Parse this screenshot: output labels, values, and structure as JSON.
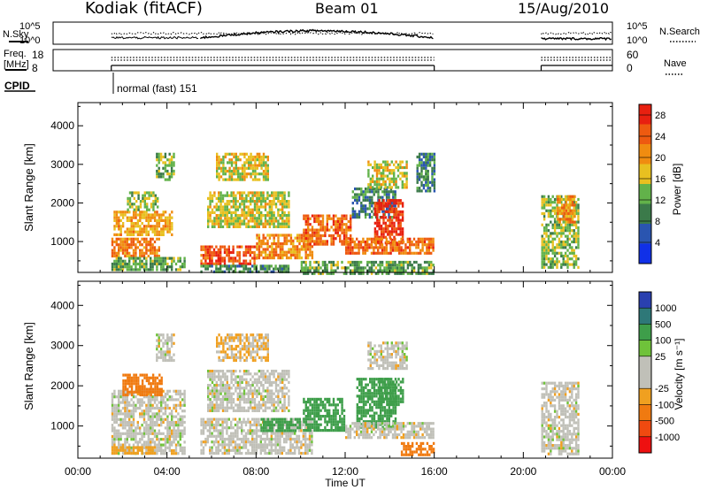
{
  "header": {
    "station": "Kodiak (fitACF)",
    "beam": "Beam 01",
    "date": "15/Aug/2010"
  },
  "top_panels": {
    "nsky_label": "N.Sky",
    "nsky_ticks": [
      "10^5",
      "10^0"
    ],
    "nsearch_label": "N.Search",
    "nsearch_ticks": [
      "10^5",
      "10^0"
    ],
    "freq_label_line1": "Freq.",
    "freq_label_line2": "[MHz]",
    "freq_ticks": [
      "18",
      "8"
    ],
    "nave_label": "Nave",
    "nave_ticks": [
      "60",
      "0"
    ],
    "cpid_label": "CPID",
    "cpid_mode": "normal (fast) 151"
  },
  "colors": {
    "power_scale": [
      "#1030e8",
      "#2a55b0",
      "#3b7a4a",
      "#62b24a",
      "#e8c020",
      "#f08c10",
      "#ee5a10",
      "#e82010"
    ],
    "velocity_scale": [
      "#ee1010",
      "#f04a10",
      "#f07a10",
      "#f0a020",
      "#c0c0b8",
      "#c0c0b8",
      "#6fc23a",
      "#3e9e4a",
      "#2e7878",
      "#2a40b0"
    ]
  },
  "chart_data": [
    {
      "type": "heatmap",
      "name": "power",
      "ylabel": "Slant Range [km]",
      "xlabel": "",
      "yticks": [
        "1000",
        "2000",
        "3000",
        "4000"
      ],
      "ylim": [
        200,
        4600
      ],
      "xlim": [
        0,
        24
      ],
      "x_tick_labels": [
        "00:00",
        "04:00",
        "08:00",
        "12:00",
        "16:00",
        "20:00",
        "00:00"
      ],
      "colorbar_label": "Power [dB]",
      "colorbar_ticks": [
        "4",
        "8",
        "12",
        "16",
        "20",
        "24",
        "28"
      ],
      "colorbar_range": [
        0,
        30
      ],
      "data_time_windows_hours": [
        [
          1.5,
          5.4
        ],
        [
          5.5,
          16.0
        ],
        [
          20.8,
          24.0
        ]
      ],
      "patches": [
        {
          "t0": 1.5,
          "t1": 3.6,
          "r0": 600,
          "r1": 1100,
          "value": 22
        },
        {
          "t0": 1.6,
          "t1": 4.2,
          "r0": 1200,
          "r1": 1800,
          "value": 19
        },
        {
          "t0": 2.2,
          "t1": 3.6,
          "r0": 1800,
          "r1": 2300,
          "value": 14
        },
        {
          "t0": 1.5,
          "t1": 4.8,
          "r0": 300,
          "r1": 600,
          "value": 12
        },
        {
          "t0": 3.5,
          "t1": 4.3,
          "r0": 2600,
          "r1": 3300,
          "value": 13
        },
        {
          "t0": 5.5,
          "t1": 8.0,
          "r0": 400,
          "r1": 900,
          "value": 25
        },
        {
          "t0": 8.0,
          "t1": 10.5,
          "r0": 600,
          "r1": 1200,
          "value": 21
        },
        {
          "t0": 5.8,
          "t1": 9.5,
          "r0": 1400,
          "r1": 2300,
          "value": 16
        },
        {
          "t0": 6.2,
          "t1": 8.5,
          "r0": 2600,
          "r1": 3300,
          "value": 17
        },
        {
          "t0": 5.5,
          "t1": 9.5,
          "r0": 200,
          "r1": 400,
          "value": 10
        },
        {
          "t0": 10.1,
          "t1": 12.2,
          "r0": 900,
          "r1": 1700,
          "value": 24
        },
        {
          "t0": 12.3,
          "t1": 14.3,
          "r0": 1600,
          "r1": 2400,
          "value": 9
        },
        {
          "t0": 13.3,
          "t1": 14.6,
          "r0": 1000,
          "r1": 2100,
          "value": 27
        },
        {
          "t0": 12.0,
          "t1": 16.0,
          "r0": 700,
          "r1": 1100,
          "value": 23
        },
        {
          "t0": 13.0,
          "t1": 14.8,
          "r0": 2400,
          "r1": 3100,
          "value": 16
        },
        {
          "t0": 15.2,
          "t1": 16.0,
          "r0": 2300,
          "r1": 3300,
          "value": 9
        },
        {
          "t0": 10.0,
          "t1": 16.0,
          "r0": 200,
          "r1": 500,
          "value": 12
        },
        {
          "t0": 20.8,
          "t1": 22.5,
          "r0": 300,
          "r1": 2200,
          "value": 14
        },
        {
          "t0": 21.5,
          "t1": 22.3,
          "r0": 1500,
          "r1": 2200,
          "value": 21
        }
      ]
    },
    {
      "type": "heatmap",
      "name": "velocity",
      "ylabel": "Slant Range [km]",
      "xlabel": "Time UT",
      "yticks": [
        "1000",
        "2000",
        "3000",
        "4000"
      ],
      "ylim": [
        200,
        4600
      ],
      "xlim": [
        0,
        24
      ],
      "x_tick_labels": [
        "00:00",
        "04:00",
        "08:00",
        "12:00",
        "16:00",
        "20:00",
        "00:00"
      ],
      "colorbar_label": "Velocity [m s⁻¹]",
      "colorbar_ticks": [
        "-1000",
        "-500",
        "-100",
        "-25",
        "25",
        "100",
        "500",
        "1000"
      ],
      "colorbar_range": [
        -1250,
        1250
      ],
      "data_time_windows_hours": [
        [
          1.5,
          5.4
        ],
        [
          5.5,
          16.0
        ],
        [
          20.8,
          24.0
        ]
      ],
      "patches": [
        {
          "t0": 1.5,
          "t1": 4.8,
          "r0": 300,
          "r1": 1900,
          "value": 0
        },
        {
          "t0": 2.0,
          "t1": 3.8,
          "r0": 1800,
          "r1": 2300,
          "value": -150
        },
        {
          "t0": 3.5,
          "t1": 4.3,
          "r0": 2600,
          "r1": 3300,
          "value": 0
        },
        {
          "t0": 5.5,
          "t1": 10.5,
          "r0": 300,
          "r1": 1200,
          "value": 0
        },
        {
          "t0": 5.8,
          "t1": 9.5,
          "r0": 1400,
          "r1": 2400,
          "value": 0
        },
        {
          "t0": 6.2,
          "t1": 8.5,
          "r0": 2600,
          "r1": 3300,
          "value": -30
        },
        {
          "t0": 8.2,
          "t1": 10.0,
          "r0": 900,
          "r1": 1200,
          "value": 200
        },
        {
          "t0": 10.1,
          "t1": 12.0,
          "r0": 900,
          "r1": 1700,
          "value": 250
        },
        {
          "t0": 12.5,
          "t1": 14.3,
          "r0": 1000,
          "r1": 2200,
          "value": 400
        },
        {
          "t0": 13.5,
          "t1": 14.6,
          "r0": 1500,
          "r1": 2200,
          "value": 150
        },
        {
          "t0": 12.0,
          "t1": 16.0,
          "r0": 700,
          "r1": 1100,
          "value": 0
        },
        {
          "t0": 14.5,
          "t1": 16.0,
          "r0": 300,
          "r1": 600,
          "value": -250
        },
        {
          "t0": 13.0,
          "t1": 14.8,
          "r0": 2400,
          "r1": 3100,
          "value": 0
        },
        {
          "t0": 20.8,
          "t1": 22.5,
          "r0": 300,
          "r1": 2100,
          "value": 0
        },
        {
          "t0": 1.5,
          "t1": 3.5,
          "r0": 300,
          "r1": 500,
          "value": -60
        }
      ]
    }
  ]
}
